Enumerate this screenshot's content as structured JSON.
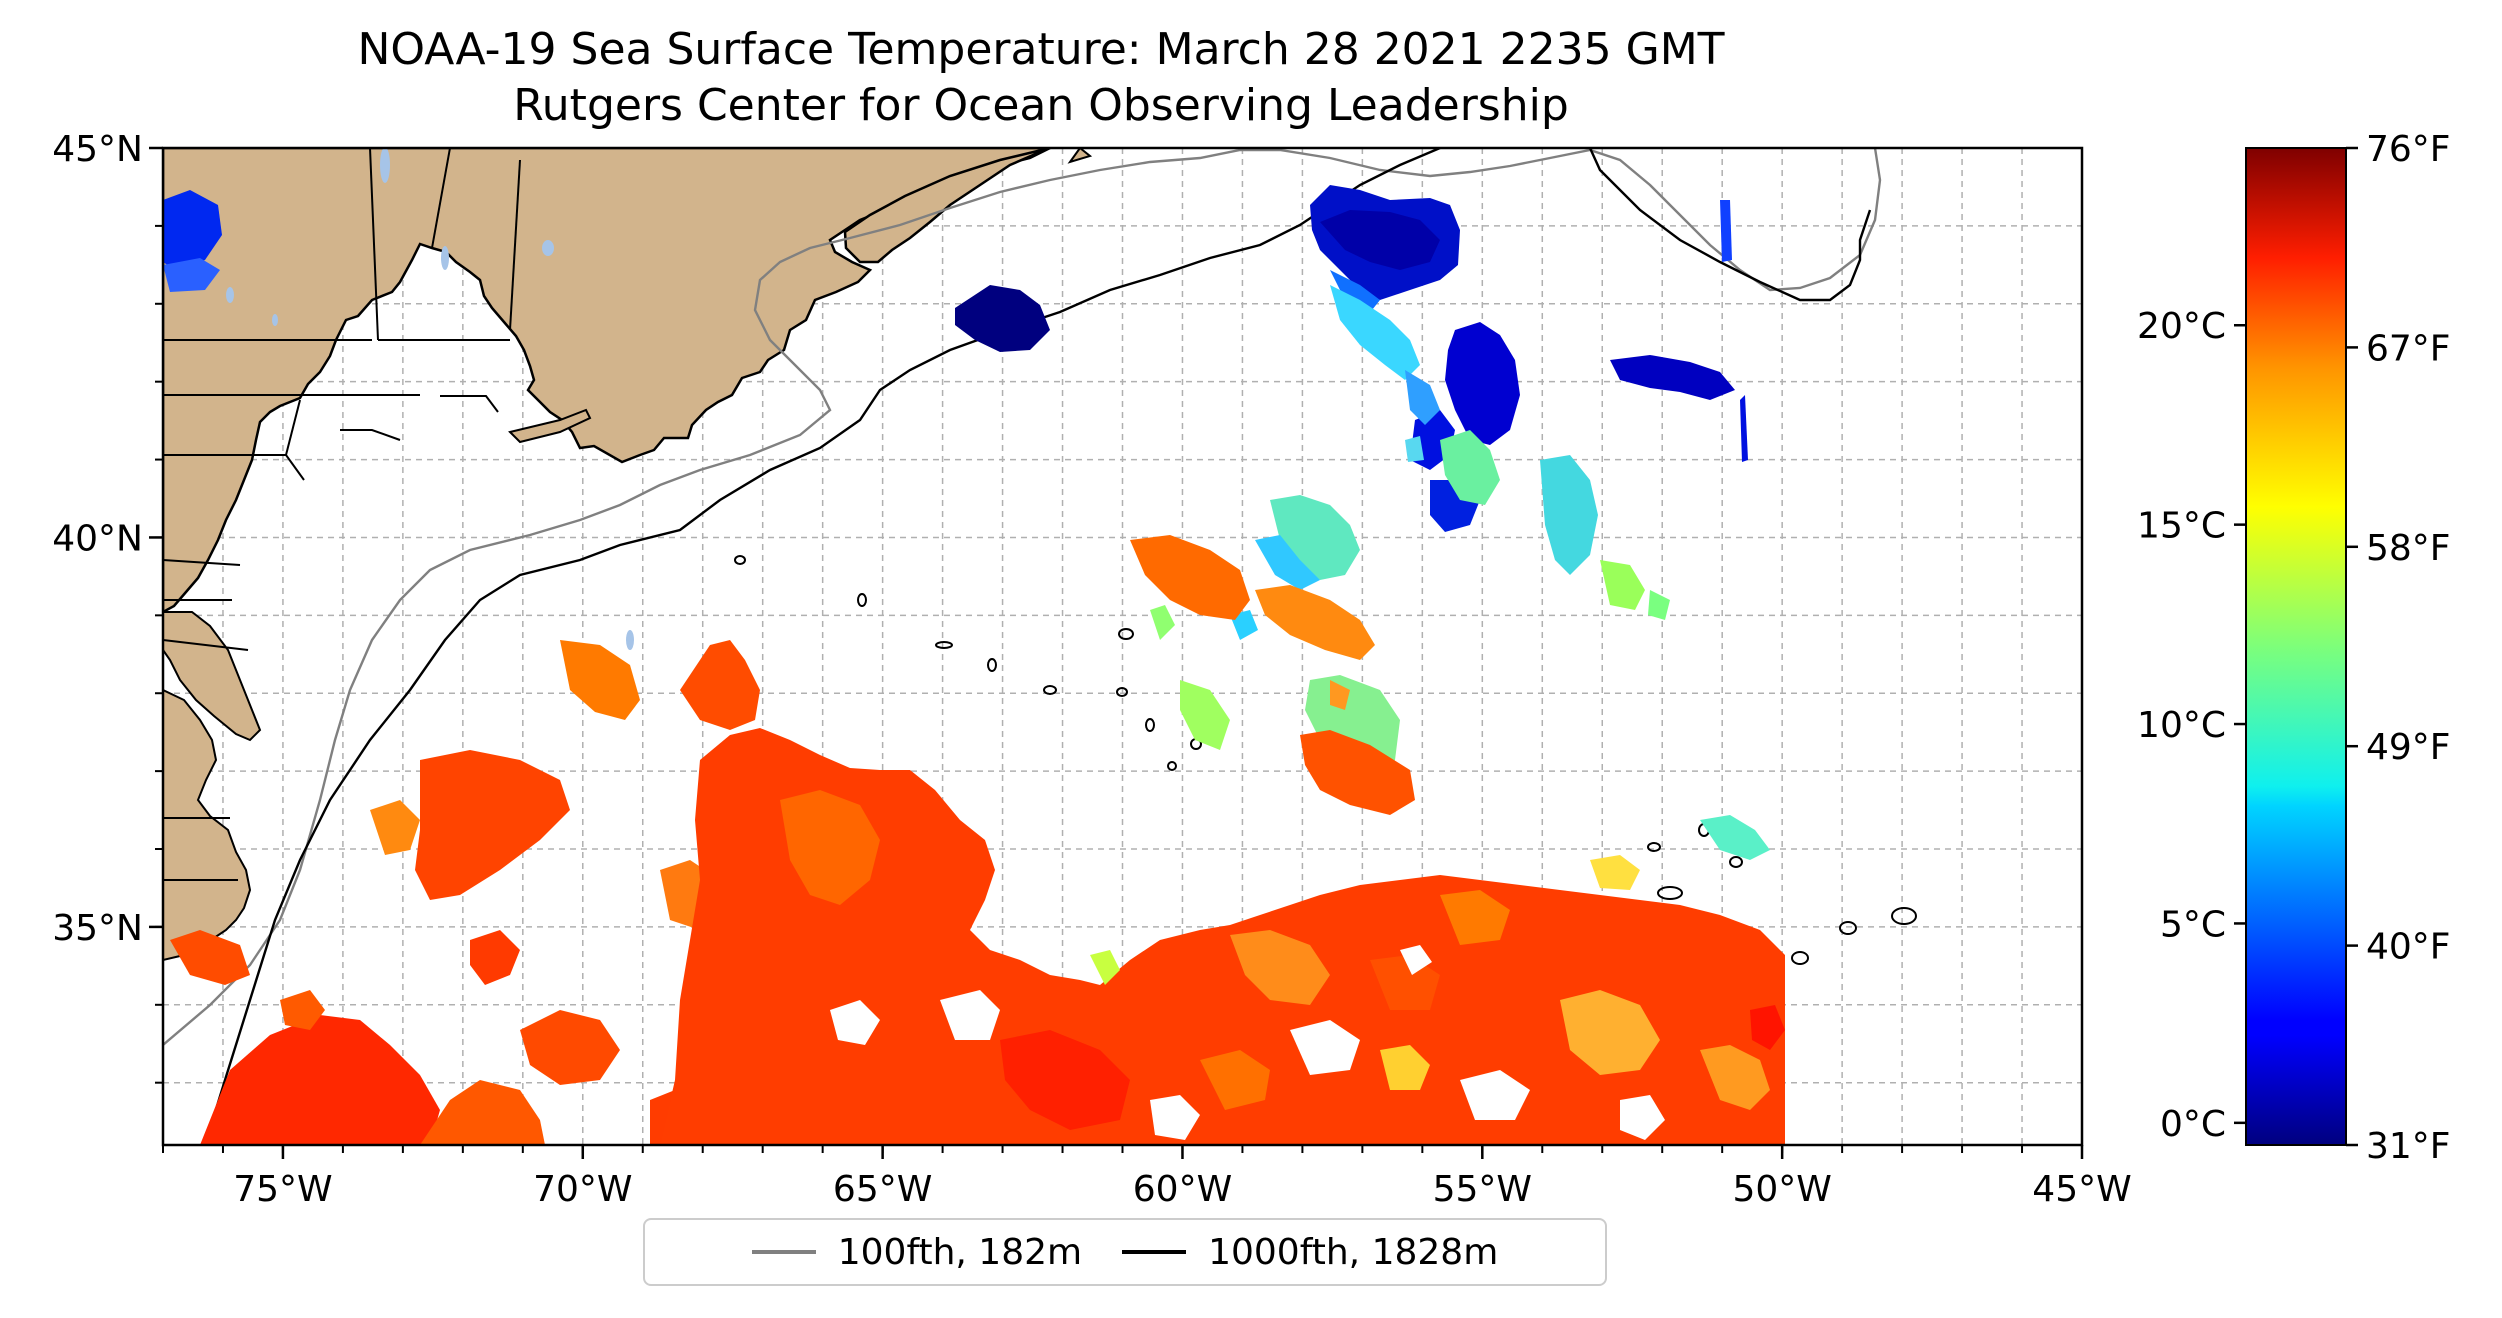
{
  "title": {
    "line1": "NOAA-19 Sea Surface Temperature: March 28 2021 2235 GMT",
    "line2": "Rutgers Center for Ocean Observing Leadership"
  },
  "map": {
    "lon_range": [
      -77,
      -45
    ],
    "lat_range": [
      32.2,
      45
    ],
    "x_tick_labels": [
      "75°W",
      "70°W",
      "65°W",
      "60°W",
      "55°W",
      "50°W",
      "45°W"
    ],
    "x_tick_values": [
      -75,
      -70,
      -65,
      -60,
      -55,
      -50,
      -45
    ],
    "y_tick_labels": [
      "35°N",
      "40°N",
      "45°N"
    ],
    "y_tick_values": [
      35,
      40,
      45
    ],
    "grid": true,
    "land_color": "#d2b48c",
    "lake_color": "#a6c4e8",
    "ocean_color": "#ffffff"
  },
  "legend": {
    "placement": "bottom-center",
    "items": [
      {
        "label": "100fth, 182m",
        "color": "#808080"
      },
      {
        "label": "1000fth, 1828m",
        "color": "#000000"
      }
    ]
  },
  "colorbar": {
    "colormap": "jet",
    "celsius_labels": [
      "0°C",
      "5°C",
      "10°C",
      "15°C",
      "20°C"
    ],
    "celsius_values": [
      0,
      5,
      10,
      15,
      20
    ],
    "fahrenheit_labels": [
      "31°F",
      "40°F",
      "49°F",
      "58°F",
      "67°F",
      "76°F"
    ],
    "fahrenheit_values": [
      31,
      40,
      49,
      58,
      67,
      76
    ],
    "range_f": [
      31,
      76
    ]
  }
}
